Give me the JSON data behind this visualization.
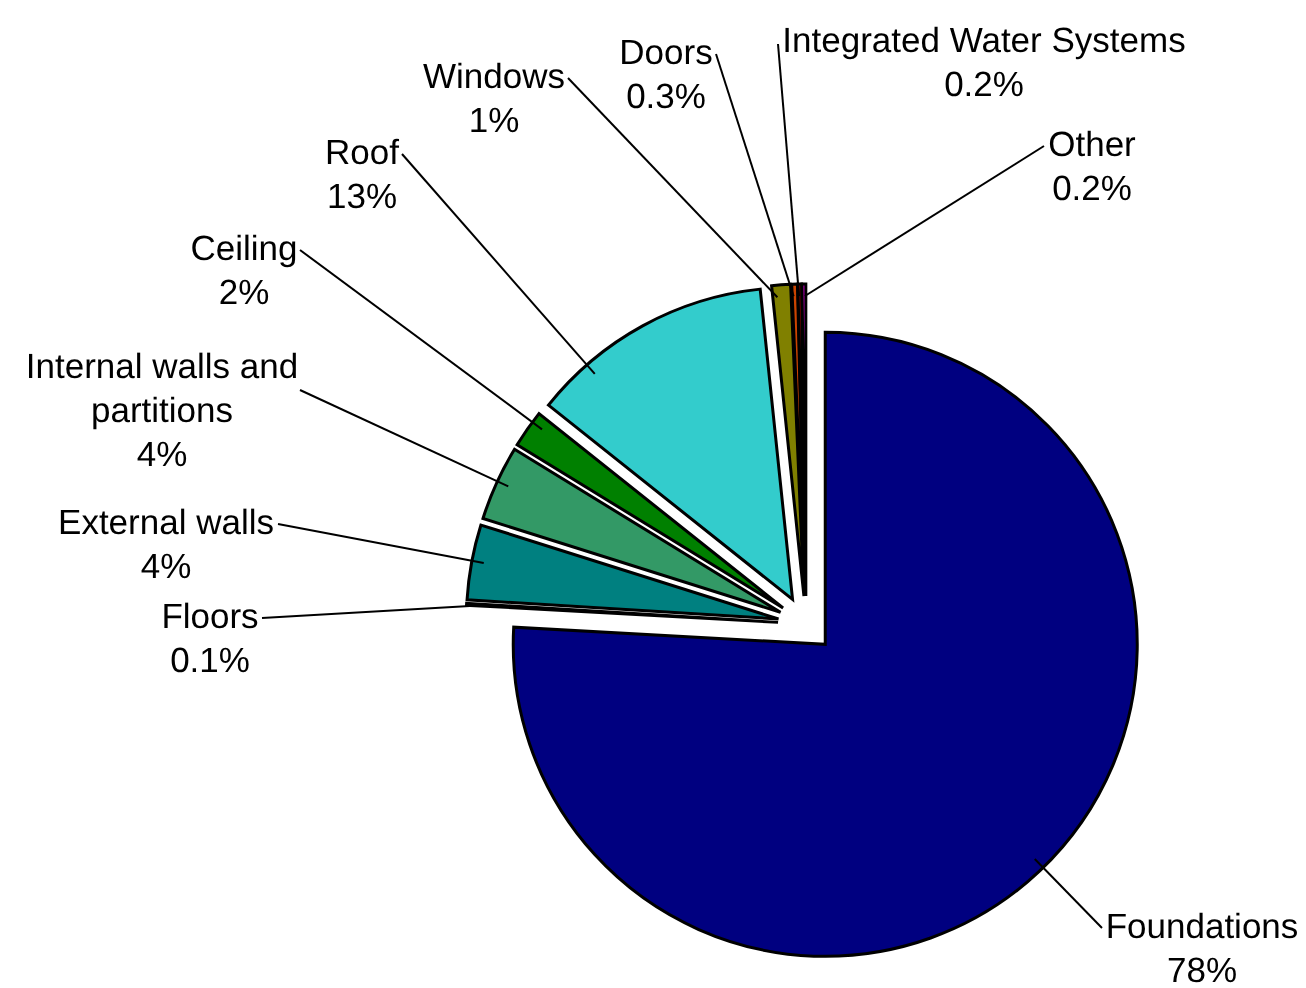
{
  "chart_data": {
    "type": "pie",
    "categories": [
      "Foundations",
      "Floors",
      "External walls",
      "Internal walls and partitions",
      "Ceiling",
      "Roof",
      "Windows",
      "Doors",
      "Integrated Water Systems",
      "Other"
    ],
    "values": [
      78,
      0.1,
      4,
      4,
      2,
      13,
      1,
      0.3,
      0.2,
      0.2
    ],
    "value_labels": [
      "78%",
      "0.1%",
      "4%",
      "4%",
      "2%",
      "13%",
      "1%",
      "0.3%",
      "0.2%",
      "0.2%"
    ],
    "colors": [
      "#000080",
      "#ccffff",
      "#008080",
      "#339966",
      "#008000",
      "#33cccc",
      "#808000",
      "#cc4400",
      "#cc0000",
      "#ff00ff"
    ]
  }
}
